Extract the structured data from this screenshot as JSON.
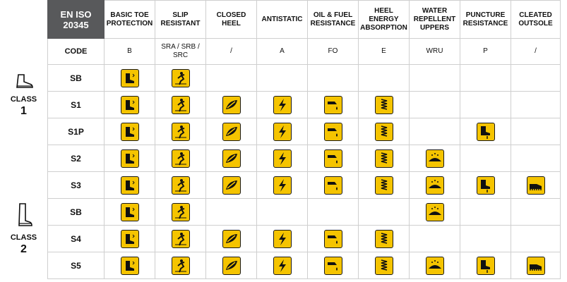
{
  "header": {
    "standard": "EN ISO 20345",
    "columns": [
      {
        "label": "BASIC TOE PROTECTION",
        "code": "B"
      },
      {
        "label": "SLIP RESISTANT",
        "code": "SRA / SRB / SRC"
      },
      {
        "label": "CLOSED HEEL",
        "code": "/"
      },
      {
        "label": "ANTISTATIC",
        "code": "A"
      },
      {
        "label": "OIL & FUEL RESISTANCE",
        "code": "FO"
      },
      {
        "label": "HEEL ENERGY ABSORPTION",
        "code": "E"
      },
      {
        "label": "WATER REPELLENT UPPERS",
        "code": "WRU"
      },
      {
        "label": "PUNCTURE RESISTANCE",
        "code": "P"
      },
      {
        "label": "CLEATED OUTSOLE",
        "code": "/"
      }
    ],
    "code_label": "CODE"
  },
  "classes": [
    {
      "label": "CLASS",
      "number": "1",
      "icon": "boot-icon"
    },
    {
      "label": "CLASS",
      "number": "2",
      "icon": "rubber-boot-icon"
    }
  ],
  "rows": [
    {
      "label": "SB",
      "features": [
        1,
        1,
        0,
        0,
        0,
        0,
        0,
        0,
        0
      ]
    },
    {
      "label": "S1",
      "features": [
        1,
        1,
        1,
        1,
        1,
        1,
        0,
        0,
        0
      ]
    },
    {
      "label": "S1P",
      "features": [
        1,
        1,
        1,
        1,
        1,
        1,
        0,
        1,
        0
      ]
    },
    {
      "label": "S2",
      "features": [
        1,
        1,
        1,
        1,
        1,
        1,
        1,
        0,
        0
      ]
    },
    {
      "label": "S3",
      "features": [
        1,
        1,
        1,
        1,
        1,
        1,
        1,
        1,
        1
      ]
    },
    {
      "label": "SB",
      "features": [
        1,
        1,
        0,
        0,
        0,
        0,
        1,
        0,
        0
      ]
    },
    {
      "label": "S4",
      "features": [
        1,
        1,
        1,
        1,
        1,
        1,
        0,
        0,
        0
      ]
    },
    {
      "label": "S5",
      "features": [
        1,
        1,
        1,
        1,
        1,
        1,
        1,
        1,
        1
      ]
    }
  ],
  "feature_icons": [
    "toe-cap-icon",
    "slip-icon",
    "closed-heel-icon",
    "antistatic-icon",
    "oil-icon",
    "heel-spring-icon",
    "water-drops-icon",
    "puncture-icon",
    "cleated-sole-icon"
  ],
  "colors": {
    "icon_bg": "#f5c400",
    "header_bg": "#58595b"
  }
}
